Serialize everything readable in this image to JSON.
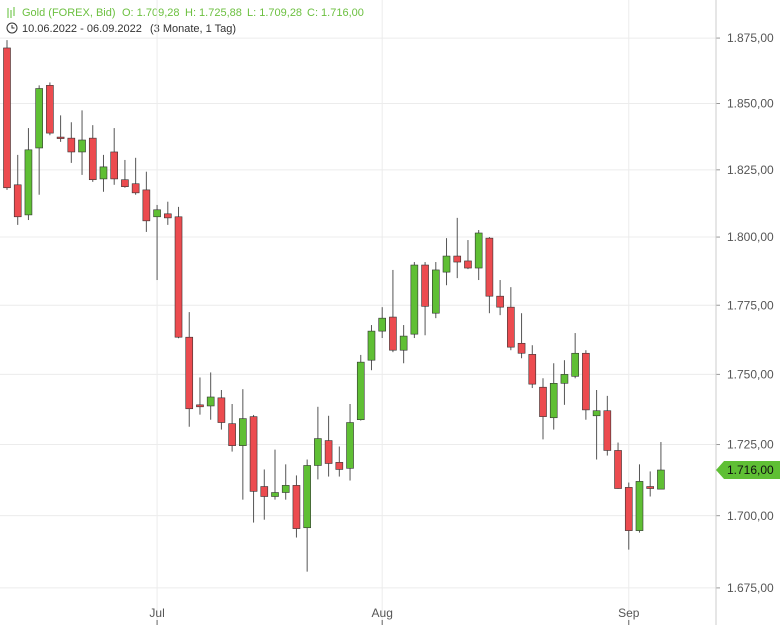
{
  "chart_data": {
    "type": "candlestick",
    "title": "Gold (FOREX, Bid)",
    "ohlc_labels": {
      "open": "O: 1.709,28",
      "high": "H: 1.725,88",
      "low": "L: 1.709,28",
      "close": "C: 1.716,00"
    },
    "date_range": "10.06.2022 - 06.09.2022",
    "period": "(3 Monate, 1 Tag)",
    "last_price_label": "1.716,00",
    "categories": [
      null,
      null,
      null,
      null,
      null,
      null,
      null,
      null,
      null,
      null,
      null,
      null,
      null,
      null,
      "Jul",
      null,
      null,
      null,
      null,
      null,
      null,
      null,
      null,
      null,
      null,
      null,
      null,
      null,
      null,
      null,
      null,
      null,
      null,
      null,
      null,
      "Aug",
      null,
      null,
      null,
      null,
      null,
      null,
      null,
      null,
      null,
      null,
      null,
      null,
      null,
      null,
      null,
      null,
      null,
      null,
      null,
      null,
      null,
      null,
      "Sep",
      null,
      null,
      null
    ],
    "series": [
      {
        "up_color": "#5fbf34",
        "down_color": "#ec4b4f",
        "open": [
          1871.2,
          1819.4,
          1808.2,
          1833.2,
          1856.9,
          1837.3,
          1836.9,
          1831.7,
          1836.9,
          1821.6,
          1831.7,
          1821.3,
          1819.8,
          1817.5,
          1807.5,
          1808.6,
          1807.5,
          1763.4,
          1739.1,
          1738.7,
          1741.6,
          1732.4,
          1724.6,
          1734.9,
          1710.2,
          1706.7,
          1708.1,
          1710.6,
          1695.8,
          1717.6,
          1726.4,
          1718.7,
          1716.6,
          1733.8,
          1755.1,
          1765.6,
          1770.7,
          1758.7,
          1764.5,
          1789.7,
          1772.1,
          1787.1,
          1793.0,
          1791.2,
          1788.6,
          1799.6,
          1778.3,
          1774.3,
          1761.2,
          1757.2,
          1745.4,
          1734.5,
          1746.8,
          1749.3,
          1757.6,
          1735.2,
          1737.0,
          1722.9,
          1709.9,
          1694.8,
          1710.2,
          1709.28
        ],
        "high": [
          1874.2,
          1830.6,
          1840.7,
          1856.9,
          1858.0,
          1845.5,
          1842.9,
          1847.4,
          1841.8,
          1830.6,
          1840.7,
          1828.7,
          1829.5,
          1824.3,
          1811.9,
          1813.1,
          1811.2,
          1772.5,
          1748.9,
          1750.7,
          1744.4,
          1739.4,
          1744.7,
          1735.5,
          1716.2,
          1723.2,
          1718.0,
          1714.1,
          1719.7,
          1738.4,
          1735.2,
          1724.3,
          1739.4,
          1757.0,
          1767.8,
          1774.3,
          1787.9,
          1767.8,
          1790.8,
          1790.8,
          1790.8,
          1799.6,
          1807.1,
          1798.9,
          1802.6,
          1800.0,
          1784.2,
          1781.6,
          1772.1,
          1760.5,
          1748.6,
          1754.0,
          1755.1,
          1764.9,
          1758.7,
          1744.4,
          1742.3,
          1725.7,
          1711.6,
          1718.0,
          1715.5,
          1725.88
        ],
        "low": [
          1817.5,
          1804.5,
          1806.3,
          1815.7,
          1838.0,
          1835.5,
          1827.6,
          1823.1,
          1820.5,
          1816.8,
          1819.4,
          1818.3,
          1815.7,
          1801.9,
          1784.2,
          1804.5,
          1763.0,
          1731.3,
          1735.6,
          1733.8,
          1730.3,
          1722.5,
          1705.6,
          1697.6,
          1698.6,
          1705.6,
          1705.6,
          1692.4,
          1680.6,
          1712.7,
          1713.7,
          1713.7,
          1712.3,
          1733.5,
          1751.5,
          1763.1,
          1758.0,
          1754.0,
          1763.1,
          1764.1,
          1770.3,
          1782.3,
          1784.9,
          1788.2,
          1784.2,
          1772.1,
          1771.4,
          1758.7,
          1755.8,
          1745.1,
          1726.8,
          1730.3,
          1739.1,
          1748.6,
          1733.8,
          1719.7,
          1721.1,
          1709.4,
          1688.2,
          1694.1,
          1706.7,
          1709.28
        ],
        "close": [
          1818.3,
          1807.5,
          1832.5,
          1855.7,
          1838.8,
          1836.9,
          1831.7,
          1836.2,
          1821.3,
          1826.1,
          1821.6,
          1818.7,
          1816.4,
          1806.0,
          1810.1,
          1807.1,
          1763.4,
          1737.7,
          1738.4,
          1741.9,
          1732.8,
          1724.6,
          1734.2,
          1708.5,
          1706.7,
          1708.1,
          1710.6,
          1695.5,
          1717.6,
          1727.1,
          1718.3,
          1716.2,
          1732.8,
          1754.4,
          1765.6,
          1770.3,
          1758.7,
          1763.8,
          1789.7,
          1774.6,
          1787.9,
          1793.0,
          1790.8,
          1788.6,
          1801.5,
          1778.3,
          1774.3,
          1759.8,
          1757.6,
          1746.5,
          1734.9,
          1746.8,
          1750.0,
          1757.6,
          1737.3,
          1737.0,
          1722.9,
          1709.5,
          1694.8,
          1712.0,
          1709.5,
          1716.0
        ]
      }
    ],
    "log_scale": true,
    "grid": true,
    "ylim": [
      1662.3,
      1889.7
    ],
    "yticks": [
      {
        "value": 1675,
        "label": "1.675,00"
      },
      {
        "value": 1700,
        "label": "1.700,00"
      },
      {
        "value": 1725,
        "label": "1.725,00"
      },
      {
        "value": 1750,
        "label": "1.750,00"
      },
      {
        "value": 1775,
        "label": "1.775,00"
      },
      {
        "value": 1800,
        "label": "1.800,00"
      },
      {
        "value": 1825,
        "label": "1.825,00"
      },
      {
        "value": 1850,
        "label": "1.850,00"
      },
      {
        "value": 1875,
        "label": "1.875,00"
      }
    ]
  }
}
